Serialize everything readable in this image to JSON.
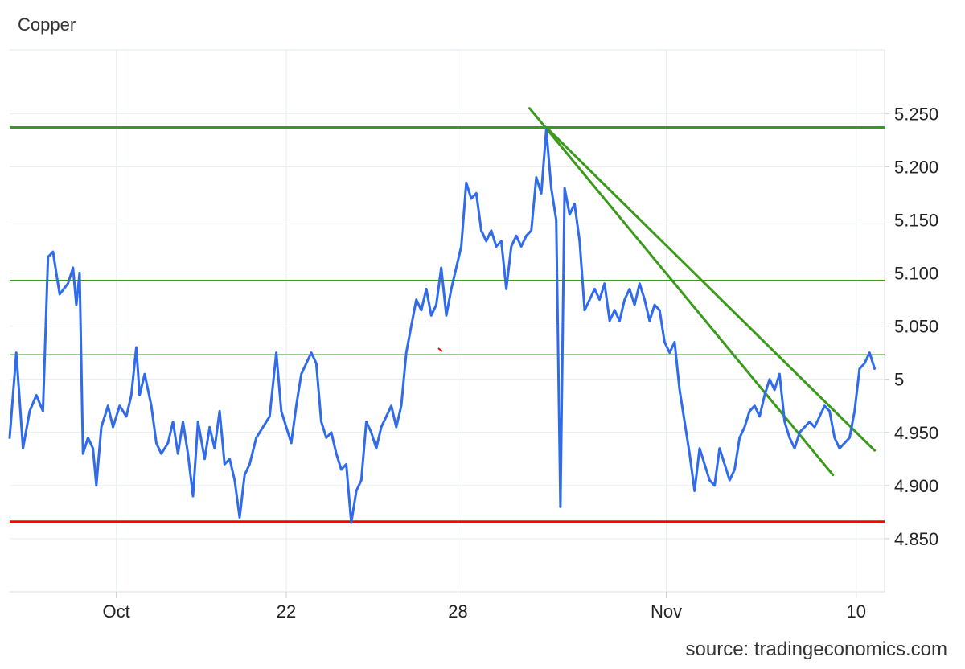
{
  "chart_data": {
    "type": "line",
    "title": "Copper",
    "source": "source: tradingeconomics.com",
    "xlabel": "",
    "ylabel": "",
    "x_ticks": [
      "Oct",
      "22",
      "28",
      "Nov",
      "10"
    ],
    "y_ticks": [
      "5.250",
      "5.200",
      "5.150",
      "5.100",
      "5.050",
      "5",
      "4.950",
      "4.900",
      "4.850"
    ],
    "ylim": [
      4.8,
      5.31
    ],
    "grid": true,
    "series": [
      {
        "name": "",
        "color": "#2f6bea",
        "points": [
          [
            0,
            4.945
          ],
          [
            0.4,
            5.025
          ],
          [
            0.8,
            4.935
          ],
          [
            1.2,
            4.97
          ],
          [
            1.6,
            4.985
          ],
          [
            2.0,
            4.97
          ],
          [
            2.3,
            5.115
          ],
          [
            2.6,
            5.12
          ],
          [
            3.0,
            5.08
          ],
          [
            3.5,
            5.09
          ],
          [
            3.8,
            5.105
          ],
          [
            4.0,
            5.07
          ],
          [
            4.2,
            5.1
          ],
          [
            4.4,
            4.93
          ],
          [
            4.7,
            4.945
          ],
          [
            5.0,
            4.935
          ],
          [
            5.2,
            4.9
          ],
          [
            5.5,
            4.955
          ],
          [
            5.9,
            4.975
          ],
          [
            6.2,
            4.955
          ],
          [
            6.6,
            4.975
          ],
          [
            7.0,
            4.965
          ],
          [
            7.3,
            4.985
          ],
          [
            7.6,
            5.03
          ],
          [
            7.8,
            4.985
          ],
          [
            8.1,
            5.005
          ],
          [
            8.5,
            4.975
          ],
          [
            8.8,
            4.94
          ],
          [
            9.1,
            4.93
          ],
          [
            9.5,
            4.94
          ],
          [
            9.8,
            4.96
          ],
          [
            10.1,
            4.93
          ],
          [
            10.4,
            4.96
          ],
          [
            10.7,
            4.93
          ],
          [
            11.0,
            4.89
          ],
          [
            11.3,
            4.96
          ],
          [
            11.7,
            4.925
          ],
          [
            12.0,
            4.955
          ],
          [
            12.3,
            4.935
          ],
          [
            12.6,
            4.97
          ],
          [
            12.9,
            4.92
          ],
          [
            13.2,
            4.925
          ],
          [
            13.5,
            4.905
          ],
          [
            13.8,
            4.87
          ],
          [
            14.1,
            4.91
          ],
          [
            14.4,
            4.92
          ],
          [
            14.8,
            4.945
          ],
          [
            15.2,
            4.955
          ],
          [
            15.6,
            4.965
          ],
          [
            16.0,
            5.025
          ],
          [
            16.3,
            4.97
          ],
          [
            16.6,
            4.955
          ],
          [
            16.9,
            4.94
          ],
          [
            17.2,
            4.975
          ],
          [
            17.5,
            5.005
          ],
          [
            17.8,
            5.015
          ],
          [
            18.1,
            5.025
          ],
          [
            18.4,
            5.015
          ],
          [
            18.7,
            4.96
          ],
          [
            19.0,
            4.945
          ],
          [
            19.3,
            4.95
          ],
          [
            19.6,
            4.93
          ],
          [
            19.9,
            4.915
          ],
          [
            20.2,
            4.92
          ],
          [
            20.5,
            4.865
          ],
          [
            20.8,
            4.895
          ],
          [
            21.1,
            4.905
          ],
          [
            21.4,
            4.96
          ],
          [
            21.7,
            4.95
          ],
          [
            22.0,
            4.935
          ],
          [
            22.3,
            4.955
          ],
          [
            22.6,
            4.965
          ],
          [
            22.9,
            4.975
          ],
          [
            23.2,
            4.955
          ],
          [
            23.5,
            4.975
          ],
          [
            23.8,
            5.025
          ],
          [
            24.1,
            5.05
          ],
          [
            24.4,
            5.075
          ],
          [
            24.7,
            5.065
          ],
          [
            25.0,
            5.085
          ],
          [
            25.3,
            5.06
          ],
          [
            25.6,
            5.07
          ],
          [
            25.9,
            5.105
          ],
          [
            26.2,
            5.06
          ],
          [
            26.5,
            5.085
          ],
          [
            26.8,
            5.105
          ],
          [
            27.1,
            5.125
          ],
          [
            27.4,
            5.185
          ],
          [
            27.7,
            5.17
          ],
          [
            28.0,
            5.175
          ],
          [
            28.3,
            5.14
          ],
          [
            28.6,
            5.13
          ],
          [
            28.9,
            5.14
          ],
          [
            29.2,
            5.125
          ],
          [
            29.5,
            5.13
          ],
          [
            29.8,
            5.085
          ],
          [
            30.1,
            5.125
          ],
          [
            30.4,
            5.135
          ],
          [
            30.7,
            5.125
          ],
          [
            31.0,
            5.135
          ],
          [
            31.3,
            5.14
          ],
          [
            31.6,
            5.19
          ],
          [
            31.9,
            5.175
          ],
          [
            32.2,
            5.235
          ],
          [
            32.5,
            5.18
          ],
          [
            32.8,
            5.15
          ],
          [
            33.05,
            4.88
          ],
          [
            33.3,
            5.18
          ],
          [
            33.6,
            5.155
          ],
          [
            33.9,
            5.165
          ],
          [
            34.2,
            5.13
          ],
          [
            34.5,
            5.065
          ],
          [
            34.8,
            5.075
          ],
          [
            35.1,
            5.085
          ],
          [
            35.4,
            5.075
          ],
          [
            35.7,
            5.09
          ],
          [
            36.0,
            5.055
          ],
          [
            36.3,
            5.065
          ],
          [
            36.6,
            5.055
          ],
          [
            36.9,
            5.075
          ],
          [
            37.2,
            5.085
          ],
          [
            37.5,
            5.07
          ],
          [
            37.8,
            5.09
          ],
          [
            38.1,
            5.075
          ],
          [
            38.4,
            5.055
          ],
          [
            38.7,
            5.07
          ],
          [
            39.0,
            5.065
          ],
          [
            39.3,
            5.035
          ],
          [
            39.6,
            5.025
          ],
          [
            39.9,
            5.035
          ],
          [
            40.2,
            4.99
          ],
          [
            40.5,
            4.96
          ],
          [
            40.8,
            4.93
          ],
          [
            41.1,
            4.895
          ],
          [
            41.4,
            4.935
          ],
          [
            41.7,
            4.92
          ],
          [
            42.0,
            4.905
          ],
          [
            42.3,
            4.9
          ],
          [
            42.6,
            4.935
          ],
          [
            42.9,
            4.92
          ],
          [
            43.2,
            4.905
          ],
          [
            43.5,
            4.915
          ],
          [
            43.8,
            4.945
          ],
          [
            44.1,
            4.955
          ],
          [
            44.4,
            4.97
          ],
          [
            44.7,
            4.975
          ],
          [
            45.0,
            4.965
          ],
          [
            45.3,
            4.985
          ],
          [
            45.6,
            5.0
          ],
          [
            45.9,
            4.99
          ],
          [
            46.2,
            5.005
          ],
          [
            46.5,
            4.96
          ],
          [
            46.8,
            4.945
          ],
          [
            47.1,
            4.935
          ],
          [
            47.4,
            4.95
          ],
          [
            47.7,
            4.955
          ],
          [
            48.0,
            4.96
          ],
          [
            48.3,
            4.955
          ],
          [
            48.6,
            4.965
          ],
          [
            48.9,
            4.975
          ],
          [
            49.2,
            4.97
          ],
          [
            49.5,
            4.945
          ],
          [
            49.8,
            4.935
          ],
          [
            50.1,
            4.94
          ],
          [
            50.4,
            4.945
          ],
          [
            50.7,
            4.97
          ],
          [
            51.0,
            5.01
          ],
          [
            51.3,
            5.015
          ],
          [
            51.6,
            5.025
          ],
          [
            51.9,
            5.01
          ]
        ]
      }
    ]
  }
}
